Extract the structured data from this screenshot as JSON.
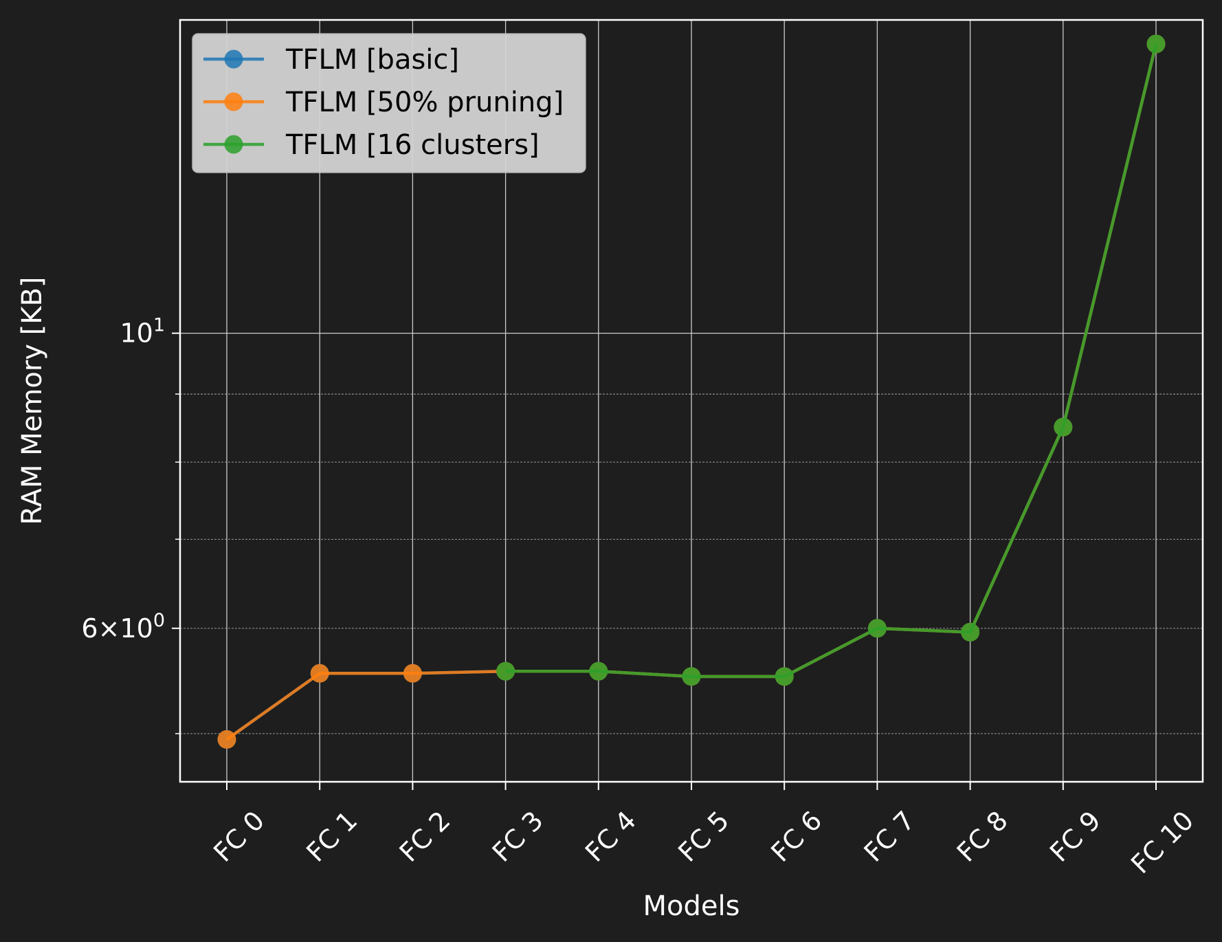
{
  "chart_data": {
    "type": "line",
    "title": "",
    "xlabel": "Models",
    "ylabel": "RAM Memory [KB]",
    "yscale": "log",
    "ylim": [
      4.6,
      17.2
    ],
    "y_tick_labels": [
      {
        "value": 10,
        "base": "10",
        "exp": "1"
      },
      {
        "value": 6,
        "mant": "6",
        "base": "10",
        "exp": "0"
      }
    ],
    "y_minor_grid": [
      5,
      7,
      8,
      9
    ],
    "categories": [
      "FC 0",
      "FC 1",
      "FC 2",
      "FC 3",
      "FC 4",
      "FC 5",
      "FC 6",
      "FC 7",
      "FC 8",
      "FC 9",
      "FC 10"
    ],
    "series": [
      {
        "name": "TFLM [basic]",
        "color": "#1f77b4",
        "values": [
          4.95,
          5.55,
          5.55,
          5.57,
          5.57,
          5.52,
          5.52,
          6.0,
          5.96,
          8.5,
          16.5
        ]
      },
      {
        "name": "TFLM [50% pruning]",
        "color": "#ff7f0e",
        "values": [
          4.95,
          5.55,
          5.55,
          5.57,
          5.57,
          5.52,
          5.52,
          6.0,
          5.96,
          8.5,
          16.5
        ]
      },
      {
        "name": "TFLM [16 clusters]",
        "color": "#2ca02c",
        "values": [
          null,
          null,
          null,
          5.57,
          5.57,
          5.52,
          5.52,
          6.0,
          5.96,
          8.5,
          16.5
        ]
      }
    ],
    "grid": true,
    "legend_position": "top-left",
    "colors": {
      "background": "#1e1e1e",
      "axes": "#ffffff",
      "grid": "#cccccc",
      "legend_bg": "#d3d3d3"
    }
  }
}
